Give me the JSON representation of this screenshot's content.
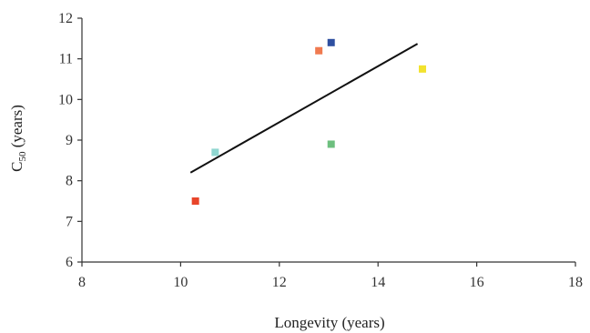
{
  "chart_data": {
    "type": "scatter",
    "title": "",
    "xlabel": "Longevity (years)",
    "ylabel_main": "C",
    "ylabel_sub": "50",
    "ylabel_rest": " (years)",
    "xlim": [
      8,
      18
    ],
    "ylim": [
      6,
      12
    ],
    "xticks": [
      "8",
      "10",
      "12",
      "14",
      "16",
      "18"
    ],
    "yticks": [
      "6",
      "7",
      "8",
      "9",
      "10",
      "11",
      "12"
    ],
    "grid": false,
    "legend": "none",
    "points": [
      {
        "x": 10.3,
        "y": 7.5,
        "color": "#e8452a"
      },
      {
        "x": 10.7,
        "y": 8.7,
        "color": "#8fd6d0"
      },
      {
        "x": 12.8,
        "y": 11.2,
        "color": "#f07a50"
      },
      {
        "x": 13.05,
        "y": 11.4,
        "color": "#2e4fa0"
      },
      {
        "x": 13.05,
        "y": 8.9,
        "color": "#6dbf7e"
      },
      {
        "x": 14.9,
        "y": 10.75,
        "color": "#f2e22e"
      }
    ],
    "trendline": {
      "x": [
        10.2,
        14.8
      ],
      "y": [
        8.2,
        11.37
      ],
      "color": "#111111"
    }
  }
}
